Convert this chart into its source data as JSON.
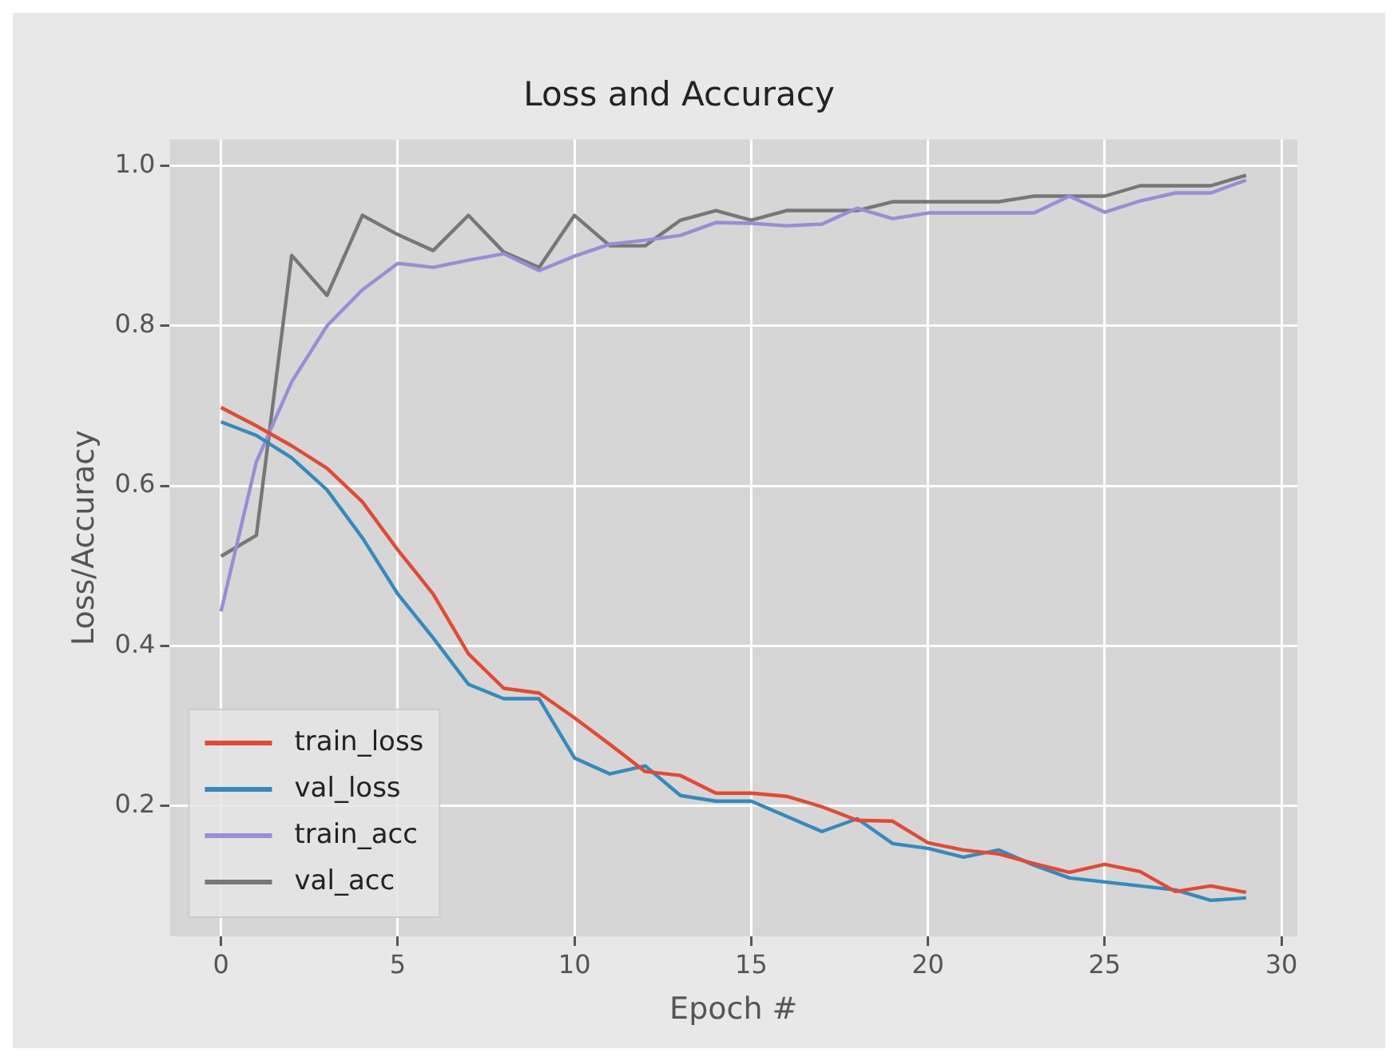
{
  "chart_data": {
    "type": "line",
    "title": "Loss and Accuracy",
    "xlabel": "Epoch #",
    "ylabel": "Loss/Accuracy",
    "x": [
      0,
      1,
      2,
      3,
      4,
      5,
      6,
      7,
      8,
      9,
      10,
      11,
      12,
      13,
      14,
      15,
      16,
      17,
      18,
      19,
      20,
      21,
      22,
      23,
      24,
      25,
      26,
      27,
      28,
      29
    ],
    "series": [
      {
        "name": "train_loss",
        "color": "#e24a33",
        "values": [
          0.698,
          0.675,
          0.65,
          0.622,
          0.58,
          0.52,
          0.465,
          0.39,
          0.347,
          0.341,
          0.31,
          0.277,
          0.243,
          0.238,
          0.216,
          0.216,
          0.212,
          0.199,
          0.182,
          0.181,
          0.154,
          0.145,
          0.14,
          0.128,
          0.117,
          0.127,
          0.118,
          0.093,
          0.1,
          0.092
        ]
      },
      {
        "name": "val_loss",
        "color": "#348abd",
        "values": [
          0.68,
          0.663,
          0.635,
          0.595,
          0.535,
          0.465,
          0.41,
          0.352,
          0.334,
          0.334,
          0.26,
          0.24,
          0.25,
          0.213,
          0.206,
          0.206,
          0.187,
          0.168,
          0.184,
          0.153,
          0.147,
          0.136,
          0.145,
          0.126,
          0.11,
          0.105,
          0.1,
          0.095,
          0.082,
          0.085
        ]
      },
      {
        "name": "train_acc",
        "color": "#988ed5",
        "values": [
          0.443,
          0.63,
          0.73,
          0.8,
          0.845,
          0.878,
          0.873,
          0.882,
          0.89,
          0.869,
          0.887,
          0.902,
          0.907,
          0.913,
          0.929,
          0.928,
          0.925,
          0.927,
          0.947,
          0.934,
          0.941,
          0.941,
          0.941,
          0.941,
          0.962,
          0.942,
          0.956,
          0.966,
          0.966,
          0.982
        ]
      },
      {
        "name": "val_acc",
        "color": "#777777",
        "values": [
          0.512,
          0.538,
          0.888,
          0.838,
          0.938,
          0.914,
          0.894,
          0.938,
          0.892,
          0.873,
          0.938,
          0.9,
          0.9,
          0.932,
          0.944,
          0.932,
          0.944,
          0.944,
          0.944,
          0.955,
          0.955,
          0.955,
          0.955,
          0.962,
          0.962,
          0.962,
          0.975,
          0.975,
          0.975,
          0.988
        ]
      }
    ],
    "xlim": [
      -1.45,
      30.45
    ],
    "xticks": [
      0,
      5,
      10,
      15,
      20,
      25,
      30
    ],
    "ylim": [
      0.037,
      1.033
    ],
    "yticks": [
      0.2,
      0.4,
      0.6,
      0.8,
      {
        "value": 1,
        "label": "1.0"
      }
    ],
    "grid": true,
    "legend": "bottom left",
    "marker": "none",
    "line_style": "solid"
  }
}
